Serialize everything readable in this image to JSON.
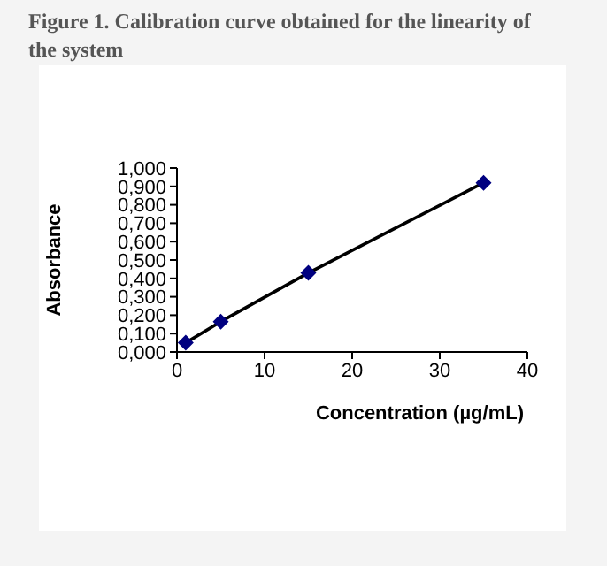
{
  "chart_data": {
    "type": "line",
    "title": "Figure 1. Calibration curve obtained for the linearity of the system",
    "xlabel": "Concentration (µg/mL)",
    "ylabel": "Absorbance",
    "x": [
      1,
      5,
      15,
      35
    ],
    "series": [
      {
        "color": "#000080",
        "values": [
          0.05,
          0.165,
          0.43,
          0.92
        ]
      }
    ],
    "marker": "diamond",
    "line_style": "solid",
    "grid": false,
    "legend": false,
    "xlim": [
      0,
      40
    ],
    "xticks": [
      0,
      10,
      20,
      30,
      40
    ],
    "ylim": [
      0,
      1
    ],
    "yticks": [
      {
        "value": 0,
        "label": "0,000"
      },
      {
        "value": 0.1,
        "label": "0,100"
      },
      {
        "value": 0.2,
        "label": "0,200"
      },
      {
        "value": 0.3,
        "label": "0,300"
      },
      {
        "value": 0.4,
        "label": "0,400"
      },
      {
        "value": 0.5,
        "label": "0,500"
      },
      {
        "value": 0.6,
        "label": "0,600"
      },
      {
        "value": 0.7,
        "label": "0,700"
      },
      {
        "value": 0.8,
        "label": "0,800"
      },
      {
        "value": 0.9,
        "label": "0,900"
      },
      {
        "value": 1,
        "label": "1,000"
      }
    ]
  }
}
